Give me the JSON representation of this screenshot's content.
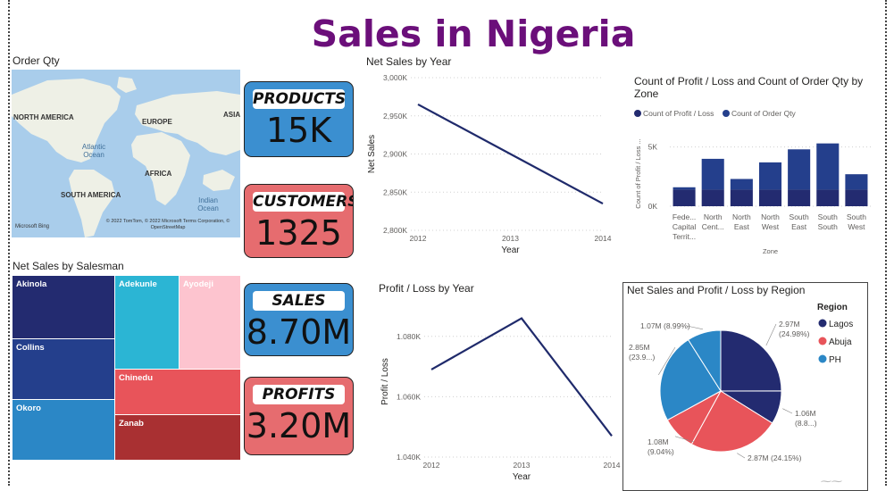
{
  "page_title": "Sales in Nigeria",
  "map": {
    "title": "Order Qty",
    "labels": [
      "NORTH AMERICA",
      "EUROPE",
      "ASIA",
      "AFRICA",
      "SOUTH AMERICA"
    ],
    "oceans": [
      "Atlantic Ocean",
      "Indian Ocean"
    ],
    "copyright": "© 2022 TomTom, © 2022 Microsoft Terms Corporation, © OpenStreetMap",
    "logo": "Microsoft Bing"
  },
  "kpis": {
    "products": {
      "label": "PRODUCTS",
      "value": "15K",
      "color": "#3B8FD0"
    },
    "customers": {
      "label": "CUSTOMERS",
      "value": "1325",
      "color": "#E66C6F"
    },
    "sales": {
      "label": "SALES",
      "value": "8.70M",
      "color": "#3B8FD0"
    },
    "profits": {
      "label": "PROFITS",
      "value": "3.20M",
      "color": "#E66C6F"
    }
  },
  "treemap": {
    "title": "Net Sales by Salesman",
    "items": [
      {
        "name": "Akinola",
        "color": "#232B70"
      },
      {
        "name": "Collins",
        "color": "#243F8C"
      },
      {
        "name": "Okoro",
        "color": "#2B87C6"
      },
      {
        "name": "Adekunle",
        "color": "#2BB5D4"
      },
      {
        "name": "Ayodeji",
        "color": "#FDC4CF"
      },
      {
        "name": "Chinedu",
        "color": "#E8545A"
      },
      {
        "name": "Zanab",
        "color": "#A93032"
      }
    ]
  },
  "chart_data": [
    {
      "type": "line",
      "title": "Net Sales by Year",
      "xlabel": "Year",
      "ylabel": "Net Sales",
      "x": [
        "2012",
        "2013",
        "2014"
      ],
      "series": [
        {
          "values": [
            2965,
            2900,
            2835
          ]
        }
      ],
      "ylim": [
        2800,
        3000
      ],
      "yticks": [
        3000,
        2950,
        2900,
        2850,
        2800
      ],
      "ytick_labels": [
        "3,000K",
        "2,950K",
        "2,900K",
        "2,850K",
        "2,800K"
      ],
      "color": "#1F2A6B",
      "grid": true
    },
    {
      "type": "bar",
      "title": "Count of Profit / Loss and Count of Order Qty by Zone",
      "xlabel": "Zone",
      "ylabel": "Count of Profit / Loss ...",
      "categories": [
        "Fede... Capital Territ...",
        "North Cent...",
        "North East",
        "North West",
        "South East",
        "South South",
        "South West"
      ],
      "category_lines": [
        [
          "Fede...",
          "Capital",
          "Territ..."
        ],
        [
          "North",
          "Cent..."
        ],
        [
          "North",
          "East"
        ],
        [
          "North",
          "West"
        ],
        [
          "South",
          "East"
        ],
        [
          "South",
          "South"
        ],
        [
          "South",
          "West"
        ]
      ],
      "series": [
        {
          "name": "Count of Profit / Loss",
          "values": [
            1400,
            1400,
            1400,
            1400,
            1400,
            1400,
            1400
          ],
          "color": "#232B70"
        },
        {
          "name": "Count of Order Qty",
          "values": [
            200,
            2600,
            900,
            2300,
            3400,
            3900,
            1300
          ],
          "color": "#243F8C"
        }
      ],
      "stacked": true,
      "ylim": [
        0,
        5500
      ],
      "yticks": [
        0,
        5000
      ],
      "ytick_labels": [
        "0K",
        "5K"
      ],
      "legend": "top-left"
    },
    {
      "type": "line",
      "title": "Profit / Loss by Year",
      "xlabel": "Year",
      "ylabel": "Profit / Loss",
      "x": [
        "2012",
        "2013",
        "2014"
      ],
      "series": [
        {
          "values": [
            1069,
            1086,
            1047
          ]
        }
      ],
      "ylim": [
        1040,
        1090
      ],
      "yticks": [
        1080,
        1060,
        1040
      ],
      "ytick_labels": [
        "1.080K",
        "1.060K",
        "1.040K"
      ],
      "color": "#1F2A6B",
      "grid": true
    },
    {
      "type": "pie",
      "title": "Net Sales and Profit / Loss by Region",
      "legend_title": "Region",
      "legend": [
        "Lagos",
        "Abuja",
        "PH"
      ],
      "slices": [
        {
          "region": "Lagos",
          "value": 2.97,
          "pct": 24.98,
          "label_lines": [
            "2.97M",
            "(24.98%)"
          ],
          "color": "#232B70"
        },
        {
          "region": "Lagos",
          "value": 1.06,
          "pct": 8.8,
          "label_lines": [
            "1.06M",
            "(8.8...)"
          ],
          "color": "#232B70"
        },
        {
          "region": "Abuja",
          "value": 2.87,
          "pct": 24.15,
          "label_lines": [
            "2.87M (24.15%)"
          ],
          "color": "#E8545A"
        },
        {
          "region": "Abuja",
          "value": 1.08,
          "pct": 9.04,
          "label_lines": [
            "1.08M",
            "(9.04%)"
          ],
          "color": "#E8545A"
        },
        {
          "region": "PH",
          "value": 2.85,
          "pct": 23.9,
          "label_lines": [
            "2.85M",
            "(23.9...)"
          ],
          "color": "#2B87C6"
        },
        {
          "region": "PH",
          "value": 1.07,
          "pct": 8.99,
          "label_lines": [
            "1.07M (8.99%)"
          ],
          "color": "#2B87C6"
        }
      ],
      "legend_colors": [
        "#232B70",
        "#E8545A",
        "#2B87C6"
      ]
    }
  ]
}
